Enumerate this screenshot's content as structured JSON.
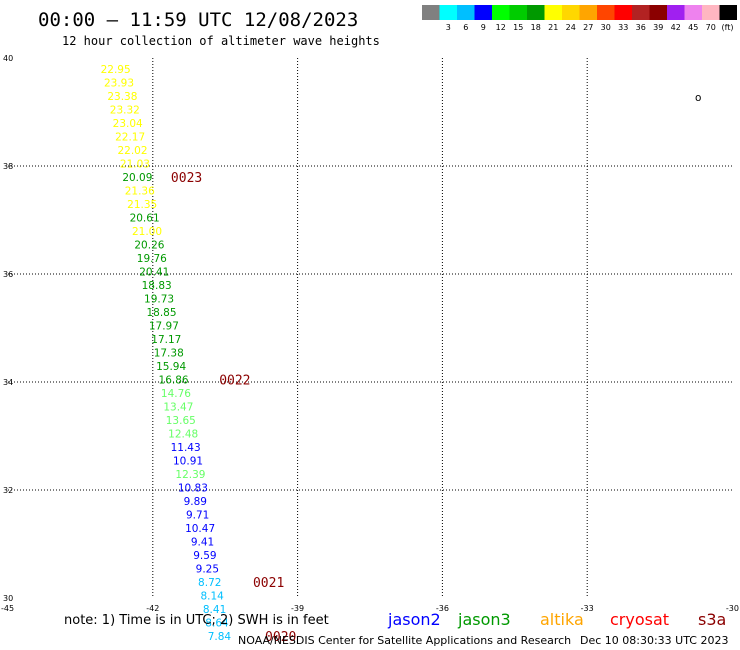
{
  "header": {
    "title": "00:00 – 11:59 UTC 12/08/2023",
    "subtitle": "12 hour collection of altimeter wave heights"
  },
  "colorbar": {
    "labels": [
      "3",
      "6",
      "9",
      "12",
      "15",
      "18",
      "21",
      "24",
      "27",
      "30",
      "33",
      "36",
      "39",
      "42",
      "45",
      "70"
    ],
    "unit": "(ft)",
    "colors": [
      "#808080",
      "#00ffff",
      "#00bfff",
      "#0000ff",
      "#00ff00",
      "#00cc00",
      "#009900",
      "#ffff00",
      "#ffd700",
      "#ffa500",
      "#ff4500",
      "#ff0000",
      "#b22222",
      "#8b0000",
      "#a020f0",
      "#ee82ee",
      "#ffb6c1",
      "#000000"
    ]
  },
  "footer": {
    "note": "note: 1) Time is in UTC; 2) SWH is in feet",
    "missions": [
      {
        "name": "jason2",
        "color": "#0000ff"
      },
      {
        "name": "jason3",
        "color": "#009900"
      },
      {
        "name": "altika",
        "color": "#ffa500"
      },
      {
        "name": "cryosat",
        "color": "#ff0000"
      },
      {
        "name": "s3a",
        "color": "#8b0000"
      }
    ],
    "credit": "NOAA/NESDIS Center for Satellite Applications and Research",
    "timestamp": "Dec 10 08:30:33 UTC 2023"
  },
  "map_symbol": "o",
  "chart_data": {
    "type": "scatter",
    "title": "00:00 – 11:59 UTC 12/08/2023",
    "xlabel": "",
    "ylabel": "",
    "xlim": [
      -45,
      -30
    ],
    "ylim": [
      30,
      40
    ],
    "x_ticks": [
      "-45",
      "-42",
      "-39",
      "-36",
      "-33",
      "-30"
    ],
    "y_ticks": [
      "40",
      "38",
      "36",
      "34",
      "32",
      "30"
    ],
    "grid": true,
    "grid_lines_x": [
      -42,
      -39,
      -36,
      -33
    ],
    "grid_lines_y": [
      38,
      36,
      34,
      32
    ],
    "points": [
      {
        "x": -42.77,
        "y": 39.8,
        "label": "22.95",
        "color": "#ffff00"
      },
      {
        "x": -42.7,
        "y": 39.55,
        "label": "23.93",
        "color": "#ffff00"
      },
      {
        "x": -42.63,
        "y": 39.3,
        "label": "23.38",
        "color": "#ffff00"
      },
      {
        "x": -42.58,
        "y": 39.05,
        "label": "23.32",
        "color": "#ffff00"
      },
      {
        "x": -42.52,
        "y": 38.8,
        "label": "23.04",
        "color": "#ffff00"
      },
      {
        "x": -42.47,
        "y": 38.55,
        "label": "22.17",
        "color": "#ffff00"
      },
      {
        "x": -42.42,
        "y": 38.3,
        "label": "22.02",
        "color": "#ffff00"
      },
      {
        "x": -42.37,
        "y": 38.05,
        "label": "21.03",
        "color": "#ffff00"
      },
      {
        "x": -42.32,
        "y": 37.8,
        "label": "20.09",
        "color": "#009900"
      },
      {
        "x": -42.27,
        "y": 37.55,
        "label": "21.36",
        "color": "#ffff00"
      },
      {
        "x": -42.22,
        "y": 37.3,
        "label": "21.35",
        "color": "#ffff00"
      },
      {
        "x": -42.17,
        "y": 37.05,
        "label": "20.61",
        "color": "#009900"
      },
      {
        "x": -42.12,
        "y": 36.8,
        "label": "21.00",
        "color": "#ffff00"
      },
      {
        "x": -42.07,
        "y": 36.55,
        "label": "20.26",
        "color": "#009900"
      },
      {
        "x": -42.02,
        "y": 36.3,
        "label": "19.76",
        "color": "#009900"
      },
      {
        "x": -41.97,
        "y": 36.05,
        "label": "20.41",
        "color": "#009900"
      },
      {
        "x": -41.92,
        "y": 35.8,
        "label": "18.83",
        "color": "#009900"
      },
      {
        "x": -41.87,
        "y": 35.55,
        "label": "19.73",
        "color": "#009900"
      },
      {
        "x": -41.82,
        "y": 35.3,
        "label": "18.85",
        "color": "#009900"
      },
      {
        "x": -41.77,
        "y": 35.05,
        "label": "17.97",
        "color": "#009900"
      },
      {
        "x": -41.72,
        "y": 34.8,
        "label": "17.17",
        "color": "#009900"
      },
      {
        "x": -41.67,
        "y": 34.55,
        "label": "17.38",
        "color": "#009900"
      },
      {
        "x": -41.62,
        "y": 34.3,
        "label": "15.94",
        "color": "#009900"
      },
      {
        "x": -41.57,
        "y": 34.05,
        "label": "16.86",
        "color": "#009900"
      },
      {
        "x": -41.52,
        "y": 33.8,
        "label": "14.76",
        "color": "#66ff66"
      },
      {
        "x": -41.47,
        "y": 33.55,
        "label": "13.47",
        "color": "#66ff66"
      },
      {
        "x": -41.42,
        "y": 33.3,
        "label": "13.65",
        "color": "#66ff66"
      },
      {
        "x": -41.37,
        "y": 33.05,
        "label": "12.48",
        "color": "#66ff66"
      },
      {
        "x": -41.32,
        "y": 32.8,
        "label": "11.43",
        "color": "#0000ff"
      },
      {
        "x": -41.27,
        "y": 32.55,
        "label": "10.91",
        "color": "#0000ff"
      },
      {
        "x": -41.22,
        "y": 32.3,
        "label": "12.39",
        "color": "#66ff66"
      },
      {
        "x": -41.17,
        "y": 32.05,
        "label": "10.83",
        "color": "#0000ff"
      },
      {
        "x": -41.12,
        "y": 31.8,
        "label": "9.89",
        "color": "#0000ff"
      },
      {
        "x": -41.07,
        "y": 31.55,
        "label": "9.71",
        "color": "#0000ff"
      },
      {
        "x": -41.02,
        "y": 31.3,
        "label": "10.47",
        "color": "#0000ff"
      },
      {
        "x": -40.97,
        "y": 31.05,
        "label": "9.41",
        "color": "#0000ff"
      },
      {
        "x": -40.92,
        "y": 30.8,
        "label": "9.59",
        "color": "#0000ff"
      },
      {
        "x": -40.87,
        "y": 30.55,
        "label": "9.25",
        "color": "#0000ff"
      },
      {
        "x": -40.82,
        "y": 30.3,
        "label": "8.72",
        "color": "#00bfff"
      },
      {
        "x": -40.77,
        "y": 30.05,
        "label": "8.14",
        "color": "#00bfff"
      },
      {
        "x": -40.72,
        "y": 29.8,
        "label": "8.41",
        "color": "#00bfff"
      },
      {
        "x": -40.67,
        "y": 29.55,
        "label": "8.64",
        "color": "#00bfff"
      },
      {
        "x": -40.62,
        "y": 29.3,
        "label": "7.84",
        "color": "#00bfff"
      }
    ],
    "time_labels": [
      {
        "x": -41.3,
        "y": 37.8,
        "label": "0023"
      },
      {
        "x": -40.3,
        "y": 34.05,
        "label": "0022"
      },
      {
        "x": -39.6,
        "y": 30.3,
        "label": "0021"
      },
      {
        "x": -39.35,
        "y": 29.3,
        "label": "0020"
      }
    ],
    "symbol_point": {
      "x": -30.7,
      "y": 39.2
    }
  }
}
